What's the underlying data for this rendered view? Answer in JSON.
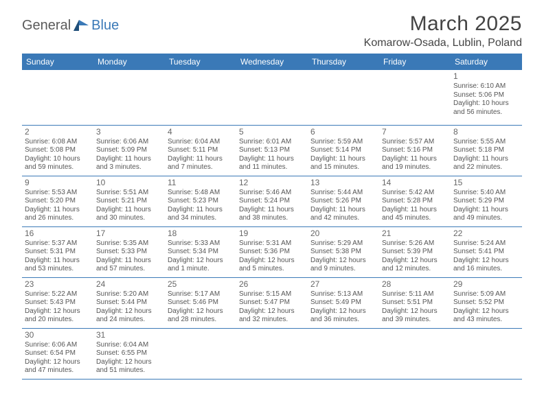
{
  "logo": {
    "text1": "General",
    "text2": "Blue"
  },
  "title": "March 2025",
  "location": "Komarow-Osada, Lublin, Poland",
  "colors": {
    "header_bg": "#3a79b7",
    "header_fg": "#ffffff",
    "border": "#3a79b7",
    "text": "#555"
  },
  "day_headers": [
    "Sunday",
    "Monday",
    "Tuesday",
    "Wednesday",
    "Thursday",
    "Friday",
    "Saturday"
  ],
  "weeks": [
    [
      null,
      null,
      null,
      null,
      null,
      null,
      {
        "n": "1",
        "sr": "Sunrise: 6:10 AM",
        "ss": "Sunset: 5:06 PM",
        "dl": "Daylight: 10 hours and 56 minutes."
      }
    ],
    [
      {
        "n": "2",
        "sr": "Sunrise: 6:08 AM",
        "ss": "Sunset: 5:08 PM",
        "dl": "Daylight: 10 hours and 59 minutes."
      },
      {
        "n": "3",
        "sr": "Sunrise: 6:06 AM",
        "ss": "Sunset: 5:09 PM",
        "dl": "Daylight: 11 hours and 3 minutes."
      },
      {
        "n": "4",
        "sr": "Sunrise: 6:04 AM",
        "ss": "Sunset: 5:11 PM",
        "dl": "Daylight: 11 hours and 7 minutes."
      },
      {
        "n": "5",
        "sr": "Sunrise: 6:01 AM",
        "ss": "Sunset: 5:13 PM",
        "dl": "Daylight: 11 hours and 11 minutes."
      },
      {
        "n": "6",
        "sr": "Sunrise: 5:59 AM",
        "ss": "Sunset: 5:14 PM",
        "dl": "Daylight: 11 hours and 15 minutes."
      },
      {
        "n": "7",
        "sr": "Sunrise: 5:57 AM",
        "ss": "Sunset: 5:16 PM",
        "dl": "Daylight: 11 hours and 19 minutes."
      },
      {
        "n": "8",
        "sr": "Sunrise: 5:55 AM",
        "ss": "Sunset: 5:18 PM",
        "dl": "Daylight: 11 hours and 22 minutes."
      }
    ],
    [
      {
        "n": "9",
        "sr": "Sunrise: 5:53 AM",
        "ss": "Sunset: 5:20 PM",
        "dl": "Daylight: 11 hours and 26 minutes."
      },
      {
        "n": "10",
        "sr": "Sunrise: 5:51 AM",
        "ss": "Sunset: 5:21 PM",
        "dl": "Daylight: 11 hours and 30 minutes."
      },
      {
        "n": "11",
        "sr": "Sunrise: 5:48 AM",
        "ss": "Sunset: 5:23 PM",
        "dl": "Daylight: 11 hours and 34 minutes."
      },
      {
        "n": "12",
        "sr": "Sunrise: 5:46 AM",
        "ss": "Sunset: 5:24 PM",
        "dl": "Daylight: 11 hours and 38 minutes."
      },
      {
        "n": "13",
        "sr": "Sunrise: 5:44 AM",
        "ss": "Sunset: 5:26 PM",
        "dl": "Daylight: 11 hours and 42 minutes."
      },
      {
        "n": "14",
        "sr": "Sunrise: 5:42 AM",
        "ss": "Sunset: 5:28 PM",
        "dl": "Daylight: 11 hours and 45 minutes."
      },
      {
        "n": "15",
        "sr": "Sunrise: 5:40 AM",
        "ss": "Sunset: 5:29 PM",
        "dl": "Daylight: 11 hours and 49 minutes."
      }
    ],
    [
      {
        "n": "16",
        "sr": "Sunrise: 5:37 AM",
        "ss": "Sunset: 5:31 PM",
        "dl": "Daylight: 11 hours and 53 minutes."
      },
      {
        "n": "17",
        "sr": "Sunrise: 5:35 AM",
        "ss": "Sunset: 5:33 PM",
        "dl": "Daylight: 11 hours and 57 minutes."
      },
      {
        "n": "18",
        "sr": "Sunrise: 5:33 AM",
        "ss": "Sunset: 5:34 PM",
        "dl": "Daylight: 12 hours and 1 minute."
      },
      {
        "n": "19",
        "sr": "Sunrise: 5:31 AM",
        "ss": "Sunset: 5:36 PM",
        "dl": "Daylight: 12 hours and 5 minutes."
      },
      {
        "n": "20",
        "sr": "Sunrise: 5:29 AM",
        "ss": "Sunset: 5:38 PM",
        "dl": "Daylight: 12 hours and 9 minutes."
      },
      {
        "n": "21",
        "sr": "Sunrise: 5:26 AM",
        "ss": "Sunset: 5:39 PM",
        "dl": "Daylight: 12 hours and 12 minutes."
      },
      {
        "n": "22",
        "sr": "Sunrise: 5:24 AM",
        "ss": "Sunset: 5:41 PM",
        "dl": "Daylight: 12 hours and 16 minutes."
      }
    ],
    [
      {
        "n": "23",
        "sr": "Sunrise: 5:22 AM",
        "ss": "Sunset: 5:43 PM",
        "dl": "Daylight: 12 hours and 20 minutes."
      },
      {
        "n": "24",
        "sr": "Sunrise: 5:20 AM",
        "ss": "Sunset: 5:44 PM",
        "dl": "Daylight: 12 hours and 24 minutes."
      },
      {
        "n": "25",
        "sr": "Sunrise: 5:17 AM",
        "ss": "Sunset: 5:46 PM",
        "dl": "Daylight: 12 hours and 28 minutes."
      },
      {
        "n": "26",
        "sr": "Sunrise: 5:15 AM",
        "ss": "Sunset: 5:47 PM",
        "dl": "Daylight: 12 hours and 32 minutes."
      },
      {
        "n": "27",
        "sr": "Sunrise: 5:13 AM",
        "ss": "Sunset: 5:49 PM",
        "dl": "Daylight: 12 hours and 36 minutes."
      },
      {
        "n": "28",
        "sr": "Sunrise: 5:11 AM",
        "ss": "Sunset: 5:51 PM",
        "dl": "Daylight: 12 hours and 39 minutes."
      },
      {
        "n": "29",
        "sr": "Sunrise: 5:09 AM",
        "ss": "Sunset: 5:52 PM",
        "dl": "Daylight: 12 hours and 43 minutes."
      }
    ],
    [
      {
        "n": "30",
        "sr": "Sunrise: 6:06 AM",
        "ss": "Sunset: 6:54 PM",
        "dl": "Daylight: 12 hours and 47 minutes."
      },
      {
        "n": "31",
        "sr": "Sunrise: 6:04 AM",
        "ss": "Sunset: 6:55 PM",
        "dl": "Daylight: 12 hours and 51 minutes."
      },
      null,
      null,
      null,
      null,
      null
    ]
  ]
}
